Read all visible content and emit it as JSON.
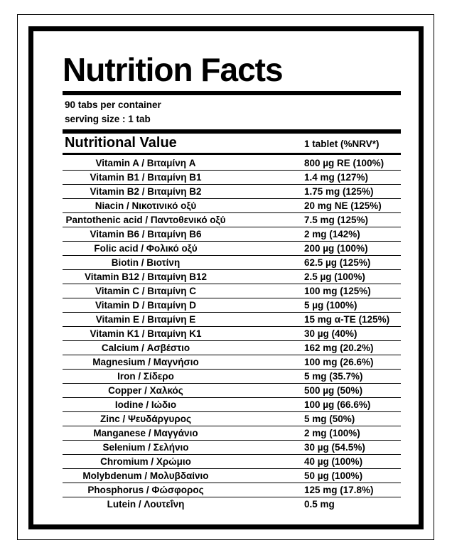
{
  "header": {
    "title": "Nutrition Facts",
    "servings": "90 tabs per container",
    "serving_size": "serving size : 1 tab"
  },
  "table": {
    "columns": [
      "Nutritional Value",
      "1 tablet (%NRV*)"
    ],
    "rows": [
      [
        "Vitamin A / Βιταμίνη A",
        "800 µg RE (100%)"
      ],
      [
        "Vitamin B1 / Βιταμίνη B1",
        "1.4 mg (127%)"
      ],
      [
        "Vitamin B2 / Βιταμίνη B2",
        "1.75 mg (125%)"
      ],
      [
        "Niacin / Νικοτινικό οξύ",
        "20 mg NE (125%)"
      ],
      [
        "Pantothenic acid / Παντοθενικό οξύ",
        "7.5 mg (125%)"
      ],
      [
        "Vitamin B6 / Βιταμίνη B6",
        "2 mg (142%)"
      ],
      [
        "Folic acid / Φολικό οξύ",
        "200 µg (100%)"
      ],
      [
        "Biotin / Βιοτίνη",
        "62.5 µg (125%)"
      ],
      [
        "Vitamin B12 / Βιταμίνη B12",
        "2.5 µg (100%)"
      ],
      [
        "Vitamin C / Βιταμίνη C",
        "100 mg (125%)"
      ],
      [
        "Vitamin D / Βιταμίνη D",
        "5 µg (100%)"
      ],
      [
        "Vitamin E / Βιταμίνη E",
        "15 mg α-TE (125%)"
      ],
      [
        "Vitamin K1 / Βιταμίνη K1",
        "30 µg (40%)"
      ],
      [
        "Calcium / Ασβέστιο",
        "162 mg (20.2%)"
      ],
      [
        "Magnesium / Μαγνήσιο",
        "100 mg (26.6%)"
      ],
      [
        "Iron / Σίδερο",
        "5 mg (35.7%)"
      ],
      [
        "Copper / Χαλκός",
        "500 µg (50%)"
      ],
      [
        "Iodine / Ιώδιο",
        "100 µg (66.6%)"
      ],
      [
        "Zinc / Ψευδάργυρος",
        "5 mg (50%)"
      ],
      [
        "Manganese / Μαγγάνιο",
        "2 mg (100%)"
      ],
      [
        "Selenium / Σελήνιο",
        "30 µg (54.5%)"
      ],
      [
        "Chromium / Χρώμιο",
        "40 µg (100%)"
      ],
      [
        "Molybdenum / Μολυβδαίνιο",
        "50 µg (100%)"
      ],
      [
        "Phosphorus / Φώσφορος",
        "125 mg (17.8%)"
      ],
      [
        "Lutein / Λουτεΐνη",
        "0.5 mg"
      ]
    ]
  }
}
